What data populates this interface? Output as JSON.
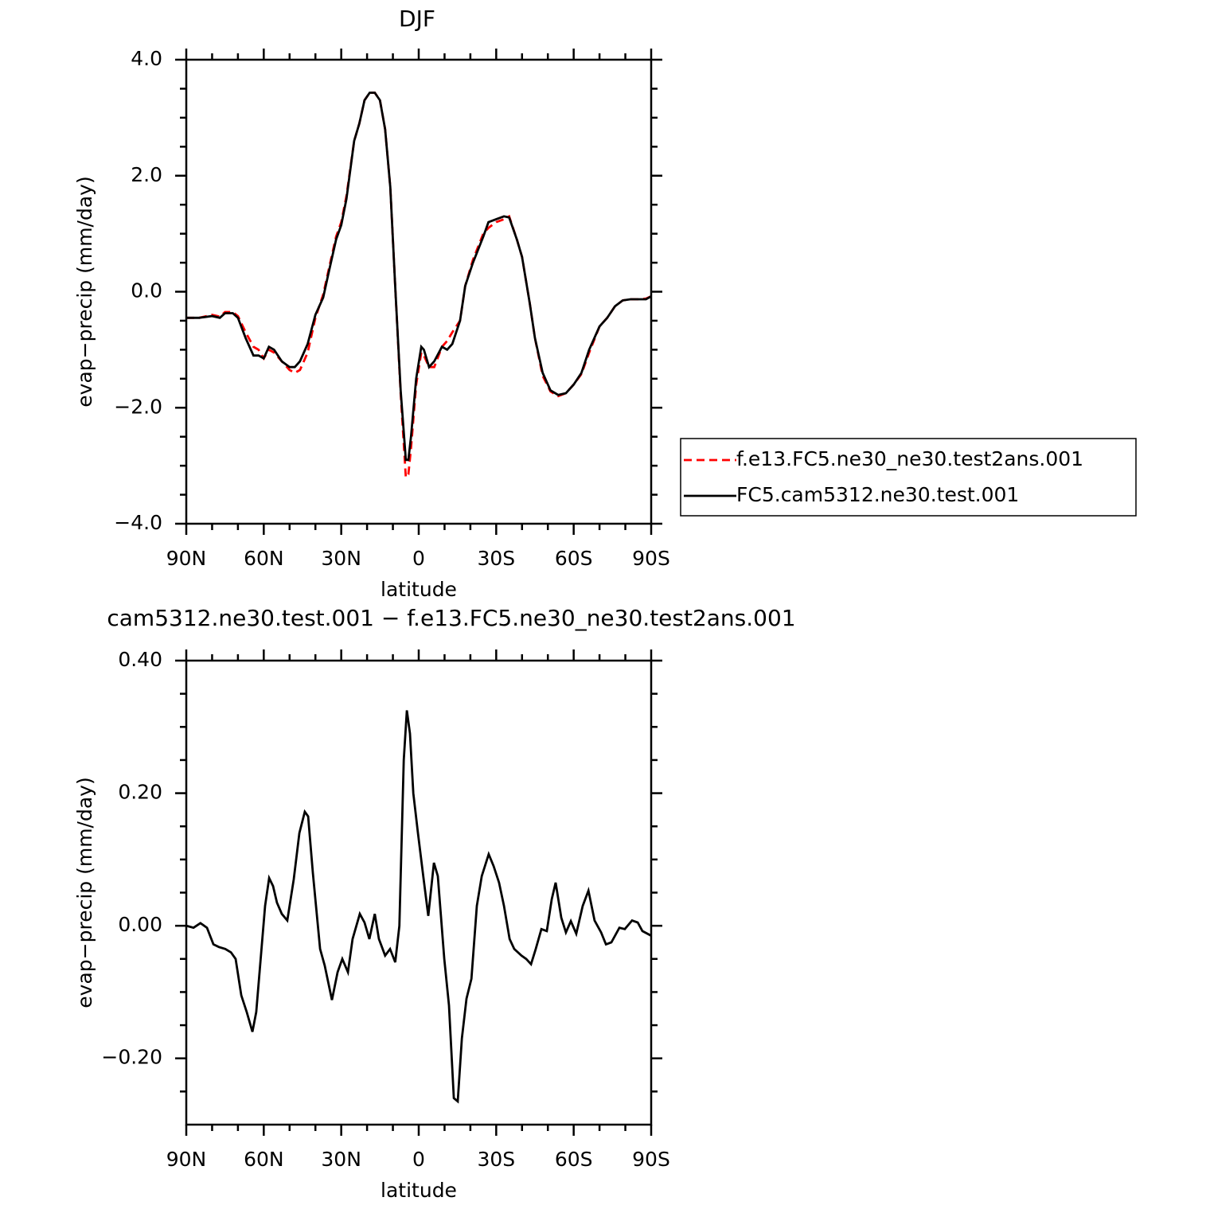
{
  "chart_data": [
    {
      "type": "line",
      "title": "DJF",
      "xlabel": "latitude",
      "ylabel": "evap−precip (mm/day)",
      "xlim": [
        90,
        -90
      ],
      "xticks": [
        {
          "value": 90,
          "label": "90N"
        },
        {
          "value": 60,
          "label": "60N"
        },
        {
          "value": 30,
          "label": "30N"
        },
        0,
        {
          "value": -30,
          "label": "30S"
        },
        {
          "value": -60,
          "label": "60S"
        },
        {
          "value": -90,
          "label": "90S"
        }
      ],
      "xminorticks": [
        80,
        70,
        50,
        40,
        20,
        10,
        -10,
        -20,
        -40,
        -50,
        -70,
        -80
      ],
      "ylim": [
        -4,
        4
      ],
      "yticks": [
        {
          "value": -4,
          "label": "−4.0"
        },
        {
          "value": -2,
          "label": "−2.0"
        },
        {
          "value": 0,
          "label": "0.0"
        },
        {
          "value": 2,
          "label": "2.0"
        },
        {
          "value": 4,
          "label": "4.0"
        }
      ],
      "yminorticks": [
        -3.5,
        -3,
        -2.5,
        -1.5,
        -1,
        -0.5,
        0.5,
        1,
        1.5,
        2.5,
        3,
        3.5
      ],
      "legend": "right",
      "x": [
        90,
        85,
        80,
        77,
        75,
        72,
        70,
        67,
        64,
        62,
        60,
        58,
        56,
        53,
        50,
        48,
        46,
        43,
        40,
        37,
        35,
        32,
        30,
        28,
        25,
        23,
        21,
        19,
        17,
        15,
        13,
        11,
        9,
        7,
        5,
        4,
        3,
        1,
        -1,
        -2,
        -4,
        -6,
        -9,
        -11,
        -13,
        -16,
        -18,
        -21,
        -25,
        -27,
        -30,
        -33,
        -35,
        -38,
        -40,
        -43,
        -45,
        -48,
        -51,
        -54,
        -57,
        -60,
        -63,
        -66,
        -70,
        -73,
        -76,
        -79,
        -82,
        -85,
        -88,
        -90
      ],
      "series": [
        {
          "name": "f.e13.FC5.ne30_ne30.test2ans.001",
          "color": "#ff0000",
          "linestyle": "dashed",
          "values": [
            -0.45,
            -0.45,
            -0.4,
            -0.43,
            -0.35,
            -0.35,
            -0.42,
            -0.7,
            -0.95,
            -1.0,
            -1.15,
            -1.0,
            -1.05,
            -1.2,
            -1.35,
            -1.4,
            -1.35,
            -1.05,
            -0.45,
            -0.05,
            0.35,
            0.95,
            1.2,
            1.65,
            2.6,
            2.9,
            3.3,
            3.43,
            3.43,
            3.3,
            2.8,
            1.8,
            0.0,
            -1.75,
            -3.2,
            -3.15,
            -2.7,
            -1.6,
            -1.05,
            -1.1,
            -1.3,
            -1.3,
            -0.95,
            -0.85,
            -0.7,
            -0.5,
            0.1,
            0.55,
            1.0,
            1.1,
            1.2,
            1.25,
            1.3,
            0.9,
            0.6,
            -0.2,
            -0.8,
            -1.45,
            -1.72,
            -1.8,
            -1.75,
            -1.6,
            -1.42,
            -1.05,
            -0.6,
            -0.45,
            -0.25,
            -0.15,
            -0.13,
            -0.13,
            -0.12,
            -0.08
          ]
        },
        {
          "name": "FC5.cam5312.ne30.test.001",
          "color": "#000000",
          "linestyle": "solid",
          "values": [
            -0.45,
            -0.45,
            -0.42,
            -0.45,
            -0.37,
            -0.37,
            -0.45,
            -0.8,
            -1.1,
            -1.1,
            -1.15,
            -0.95,
            -1.0,
            -1.2,
            -1.3,
            -1.3,
            -1.2,
            -0.9,
            -0.4,
            -0.1,
            0.3,
            0.9,
            1.15,
            1.6,
            2.6,
            2.9,
            3.3,
            3.43,
            3.43,
            3.3,
            2.8,
            1.8,
            0.0,
            -1.7,
            -2.9,
            -2.9,
            -2.5,
            -1.5,
            -0.95,
            -1.0,
            -1.3,
            -1.2,
            -0.95,
            -1.0,
            -0.9,
            -0.5,
            0.1,
            0.5,
            0.95,
            1.2,
            1.25,
            1.3,
            1.28,
            0.9,
            0.6,
            -0.2,
            -0.8,
            -1.4,
            -1.7,
            -1.78,
            -1.75,
            -1.6,
            -1.4,
            -1.0,
            -0.6,
            -0.45,
            -0.25,
            -0.15,
            -0.13,
            -0.13,
            -0.13,
            -0.08
          ]
        }
      ]
    },
    {
      "type": "line",
      "title": "cam5312.ne30.test.001 − f.e13.FC5.ne30_ne30.test2ans.001",
      "xlabel": "latitude",
      "ylabel": "evap−precip (mm/day)",
      "xlim": [
        90,
        -90
      ],
      "xticks": [
        {
          "value": 90,
          "label": "90N"
        },
        {
          "value": 60,
          "label": "60N"
        },
        {
          "value": 30,
          "label": "30N"
        },
        0,
        {
          "value": -30,
          "label": "30S"
        },
        {
          "value": -60,
          "label": "60S"
        },
        {
          "value": -90,
          "label": "90S"
        }
      ],
      "xminorticks": [
        80,
        70,
        50,
        40,
        20,
        10,
        -10,
        -20,
        -40,
        -50,
        -70,
        -80
      ],
      "ylim": [
        -0.3,
        0.4
      ],
      "yticks": [
        {
          "value": -0.2,
          "label": "−0.20"
        },
        {
          "value": 0,
          "label": "0.00"
        },
        {
          "value": 0.2,
          "label": "0.20"
        },
        {
          "value": 0.4,
          "label": "0.40"
        }
      ],
      "yminorticks": [
        -0.25,
        -0.15,
        -0.1,
        -0.05,
        0.05,
        0.1,
        0.15,
        0.25,
        0.3,
        0.35
      ],
      "x": [
        90,
        87.2,
        84.5,
        82,
        79.5,
        77.4,
        74.9,
        72.7,
        70.9,
        68.7,
        66.6,
        64.4,
        62.9,
        59.5,
        57.9,
        56.4,
        54.9,
        53,
        50.9,
        48.4,
        46.2,
        44.1,
        42.8,
        41,
        38.2,
        36.4,
        33.6,
        31.4,
        29.6,
        27.4,
        25.6,
        22.8,
        21,
        19.1,
        17,
        15.4,
        13,
        11.1,
        9.1,
        7.5,
        5.8,
        4.6,
        3.4,
        2.1,
        0.3,
        -1.9,
        -3.7,
        -5.9,
        -7.4,
        -9.9,
        -11.7,
        -13.6,
        -15.1,
        -16.7,
        -18.5,
        -20.4,
        -22.5,
        -24.4,
        -27.1,
        -29,
        -31.1,
        -33,
        -35.2,
        -37,
        -39.8,
        -41.6,
        -43.5,
        -45.3,
        -47.5,
        -49.6,
        -51.5,
        -53,
        -55.2,
        -57,
        -58.9,
        -61,
        -63.5,
        -65.7,
        -68.1,
        -70.6,
        -72.5,
        -74.6,
        -77.7,
        -79.8,
        -82.6,
        -84.8,
        -86.6,
        -90
      ],
      "series": [
        {
          "color": "#000000",
          "linestyle": "solid",
          "values": [
            0.0,
            -0.003,
            0.004,
            -0.003,
            -0.028,
            -0.032,
            -0.035,
            -0.04,
            -0.05,
            -0.105,
            -0.13,
            -0.16,
            -0.13,
            0.03,
            0.072,
            0.06,
            0.035,
            0.018,
            0.008,
            0.07,
            0.14,
            0.172,
            0.165,
            0.08,
            -0.035,
            -0.06,
            -0.112,
            -0.07,
            -0.05,
            -0.07,
            -0.02,
            0.018,
            0.005,
            -0.02,
            0.018,
            -0.02,
            -0.045,
            -0.035,
            -0.055,
            0.0,
            0.25,
            0.325,
            0.29,
            0.2,
            0.14,
            0.07,
            0.015,
            0.095,
            0.075,
            -0.05,
            -0.12,
            -0.26,
            -0.265,
            -0.17,
            -0.11,
            -0.08,
            0.03,
            0.075,
            0.108,
            0.09,
            0.065,
            0.03,
            -0.02,
            -0.035,
            -0.045,
            -0.05,
            -0.058,
            -0.035,
            -0.005,
            -0.008,
            0.04,
            0.065,
            0.012,
            -0.01,
            0.007,
            -0.012,
            0.03,
            0.053,
            0.008,
            -0.01,
            -0.028,
            -0.025,
            -0.003,
            -0.005,
            0.008,
            0.005,
            -0.008,
            -0.015
          ]
        }
      ]
    }
  ]
}
